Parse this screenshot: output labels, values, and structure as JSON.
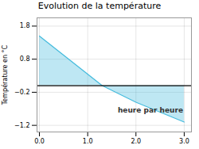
{
  "chart_data": {
    "type": "area",
    "title": "Evolution de la température",
    "ylabel": "Température en °C",
    "x": [
      0,
      1.3,
      2.0,
      3.0
    ],
    "values": [
      1.5,
      0.0,
      -0.5,
      -1.1
    ],
    "color": "#44bbdd",
    "xlim": [
      -0.05,
      3.15
    ],
    "ylim": [
      -1.4,
      2.05
    ],
    "xticks": [
      0,
      1,
      2,
      3
    ],
    "yticks": [
      -1.2,
      -0.2,
      0.8,
      1.8
    ],
    "grid": true,
    "annotations": [
      {
        "text": "heure par heure",
        "x": 2.3,
        "y": -0.75
      }
    ]
  }
}
